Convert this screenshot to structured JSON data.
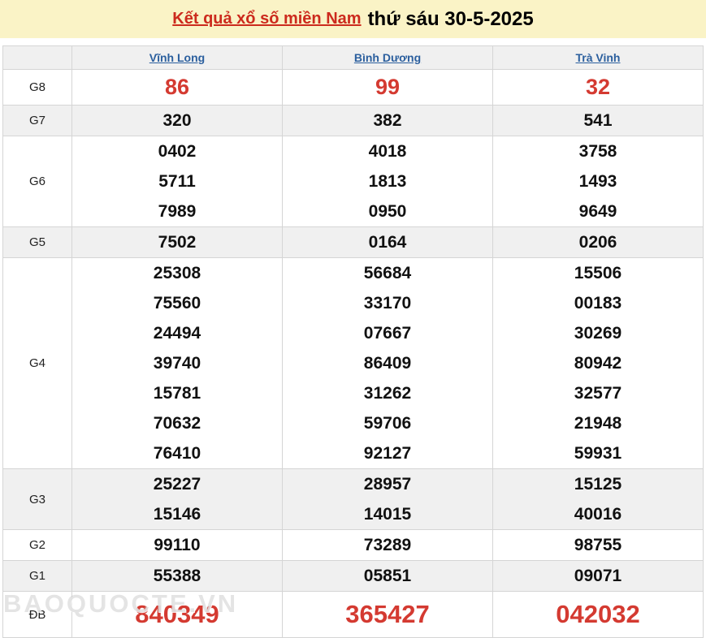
{
  "title": {
    "link_text": "Kết quả xổ số miền Nam",
    "date_text": "thứ sáu 30-5-2025"
  },
  "columns": [
    "Vĩnh Long",
    "Bình Dương",
    "Trà Vinh"
  ],
  "rows": [
    {
      "label": "G8",
      "style": "g8",
      "values": [
        [
          "86"
        ],
        [
          "99"
        ],
        [
          "32"
        ]
      ]
    },
    {
      "label": "G7",
      "style": "normal",
      "values": [
        [
          "320"
        ],
        [
          "382"
        ],
        [
          "541"
        ]
      ]
    },
    {
      "label": "G6",
      "style": "normal",
      "values": [
        [
          "0402",
          "5711",
          "7989"
        ],
        [
          "4018",
          "1813",
          "0950"
        ],
        [
          "3758",
          "1493",
          "9649"
        ]
      ]
    },
    {
      "label": "G5",
      "style": "normal",
      "values": [
        [
          "7502"
        ],
        [
          "0164"
        ],
        [
          "0206"
        ]
      ]
    },
    {
      "label": "G4",
      "style": "normal",
      "values": [
        [
          "25308",
          "75560",
          "24494",
          "39740",
          "15781",
          "70632",
          "76410"
        ],
        [
          "56684",
          "33170",
          "07667",
          "86409",
          "31262",
          "59706",
          "92127"
        ],
        [
          "15506",
          "00183",
          "30269",
          "80942",
          "32577",
          "21948",
          "59931"
        ]
      ]
    },
    {
      "label": "G3",
      "style": "normal",
      "values": [
        [
          "25227",
          "15146"
        ],
        [
          "28957",
          "14015"
        ],
        [
          "15125",
          "40016"
        ]
      ]
    },
    {
      "label": "G2",
      "style": "normal",
      "values": [
        [
          "99110"
        ],
        [
          "73289"
        ],
        [
          "98755"
        ]
      ]
    },
    {
      "label": "G1",
      "style": "normal",
      "values": [
        [
          "55388"
        ],
        [
          "05851"
        ],
        [
          "09071"
        ]
      ]
    },
    {
      "label": "ĐB",
      "style": "db",
      "values": [
        [
          "840349"
        ],
        [
          "365427"
        ],
        [
          "042032"
        ]
      ]
    }
  ],
  "watermark": "BAOQUOCTE.VN",
  "colors": {
    "banner_bg": "#faf3c6",
    "link_red": "#cc2a1d",
    "number_red": "#d43a31",
    "header_blue": "#2b5f9e",
    "row_shade": "#f0f0f0",
    "border": "#d5d5d5"
  }
}
